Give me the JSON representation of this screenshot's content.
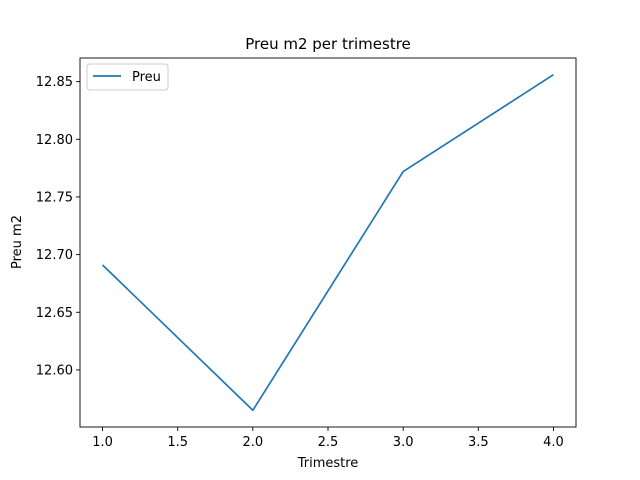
{
  "chart_data": {
    "type": "line",
    "title": "Preu m2 per trimestre",
    "xlabel": "Trimestre",
    "ylabel": "Preu m2",
    "xlim": [
      0.85,
      4.15
    ],
    "ylim": [
      12.5505,
      12.8705
    ],
    "x_ticks": [
      1.0,
      1.5,
      2.0,
      2.5,
      3.0,
      3.5,
      4.0
    ],
    "x_tick_labels": [
      "1.0",
      "1.5",
      "2.0",
      "2.5",
      "3.0",
      "3.5",
      "4.0"
    ],
    "y_ticks": [
      12.6,
      12.65,
      12.7,
      12.75,
      12.8,
      12.85
    ],
    "y_tick_labels": [
      "12.60",
      "12.65",
      "12.70",
      "12.75",
      "12.80",
      "12.85"
    ],
    "grid": false,
    "legend_position": "upper-left",
    "series": [
      {
        "name": "Preu",
        "color": "#1f77b4",
        "x": [
          1.0,
          2.0,
          3.0,
          4.0
        ],
        "y": [
          12.691,
          12.565,
          12.772,
          12.856
        ]
      }
    ]
  }
}
